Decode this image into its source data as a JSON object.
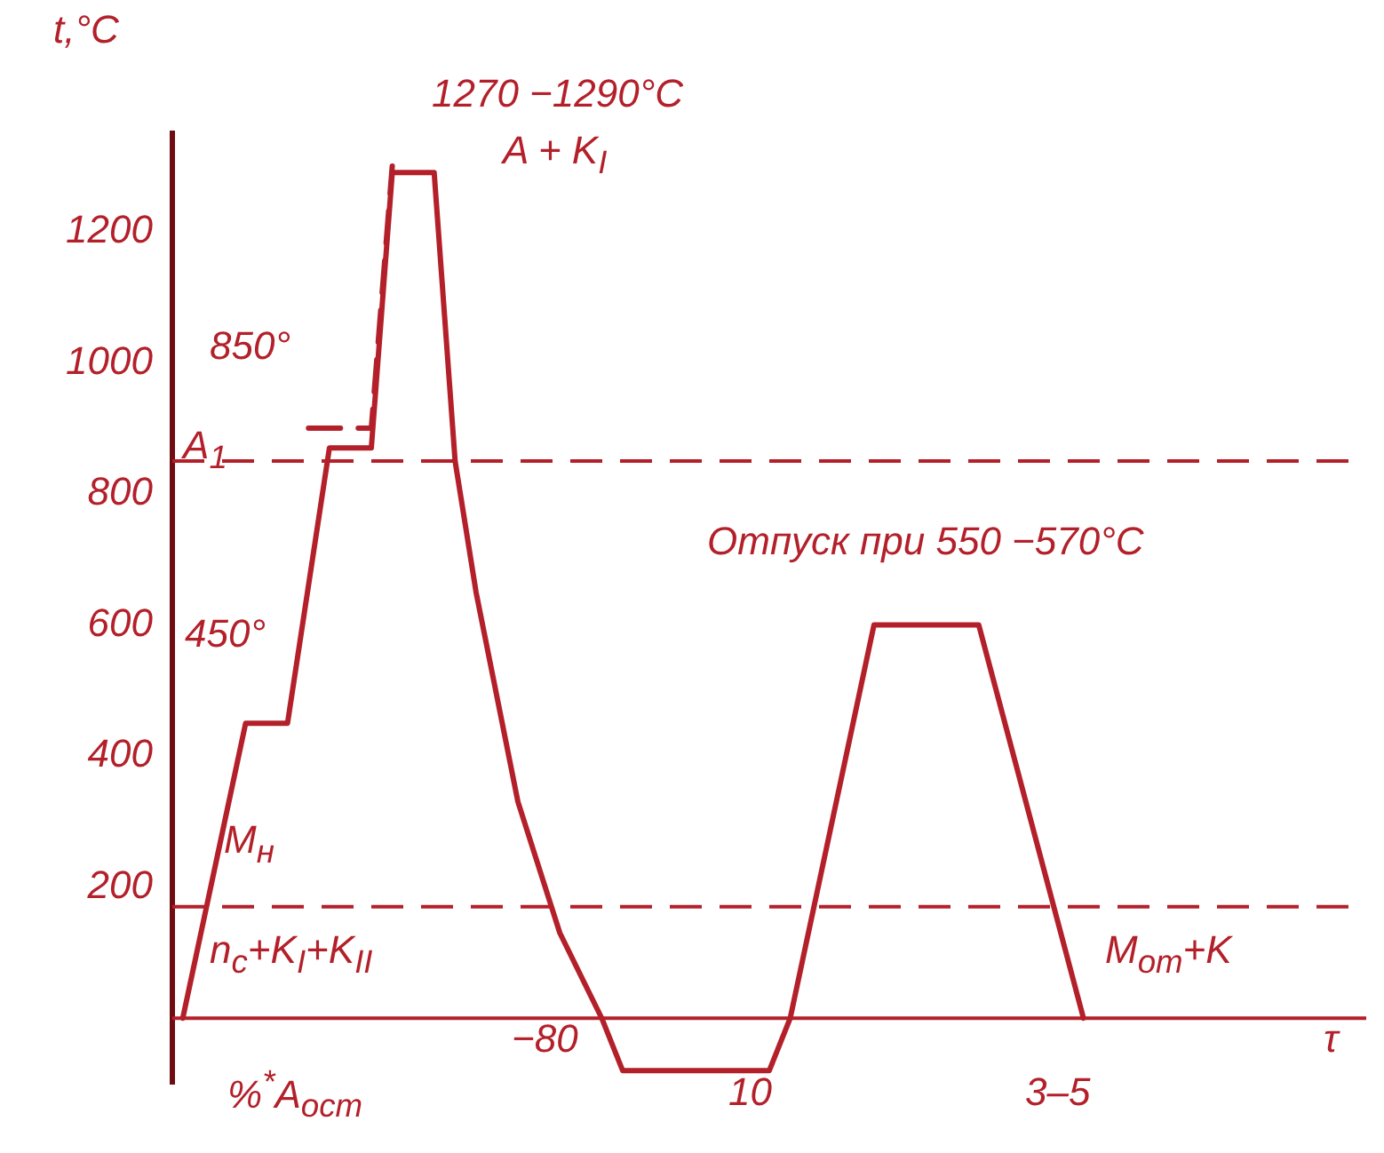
{
  "chart_data": {
    "type": "line",
    "ylabel": "t,°C",
    "xlabel": "τ",
    "categories": [
      null,
      null,
      null,
      null,
      null,
      null,
      null,
      null,
      null,
      null,
      null,
      null,
      null,
      null,
      null,
      null,
      null,
      null,
      null,
      null,
      null,
      null,
      null,
      null,
      null,
      null,
      null,
      null,
      null,
      null,
      null,
      null,
      null,
      null,
      null,
      null,
      null,
      null,
      null,
      null,
      null,
      null,
      null,
      null,
      null,
      null,
      null,
      null,
      null,
      null,
      null,
      null,
      null,
      null,
      null,
      null,
      null
    ],
    "series": [
      {
        "color": "#b3202a",
        "line_style": "solid",
        "values": [
          0,
          null,
          null,
          450,
          null,
          450,
          null,
          870,
          null,
          870,
          1290,
          null,
          1290,
          850,
          650,
          null,
          330,
          null,
          130,
          null,
          0,
          -80,
          null,
          null,
          null,
          null,
          null,
          null,
          -80,
          0,
          null,
          null,
          null,
          600,
          null,
          null,
          null,
          null,
          600,
          null,
          null,
          null,
          null,
          0,
          null,
          null,
          null,
          null,
          null,
          null,
          null,
          null,
          null,
          null,
          null,
          null,
          null
        ]
      },
      {
        "color": "#b3202a",
        "line_style": "dashed",
        "values": [
          null,
          null,
          null,
          null,
          null,
          null,
          900,
          null,
          null,
          900,
          1300,
          null,
          null,
          null,
          null,
          null,
          null,
          null,
          null,
          null,
          null,
          null,
          null,
          null,
          null,
          null,
          null,
          null,
          null,
          null,
          null,
          null,
          null,
          null,
          null,
          null,
          null,
          null,
          null,
          null,
          null,
          null,
          null,
          null,
          null,
          null,
          null,
          null,
          null,
          null,
          null,
          null,
          null,
          null,
          null,
          null,
          null
        ]
      }
    ],
    "ylim": [
      -100,
      1350
    ],
    "yticks": [
      200,
      400,
      600,
      800,
      1000,
      1200
    ],
    "ref_lines": [
      {
        "axis": "y",
        "value": 0,
        "color": "#b3202a",
        "line_style": "solid"
      },
      {
        "axis": "y",
        "value": 850,
        "label": "A$_{1}$",
        "color": "#b3202a",
        "line_style": "dashed"
      },
      {
        "axis": "y",
        "value": 170,
        "label": "M$_{н}$",
        "color": "#b3202a",
        "line_style": "dashed"
      }
    ],
    "annotations": [
      "1270 −1290°C",
      "A + K$_{I}$",
      "850°",
      "450°",
      "Отпуск при 550 −570°C",
      "n$_{c}$+K$_{I}$+K$_{II}$",
      "M$_{от}$+K",
      "−80",
      "10",
      "3–5",
      "%$^{*}$A$_{ост}$"
    ],
    "grid": false,
    "legend": false,
    "marker": "none"
  }
}
